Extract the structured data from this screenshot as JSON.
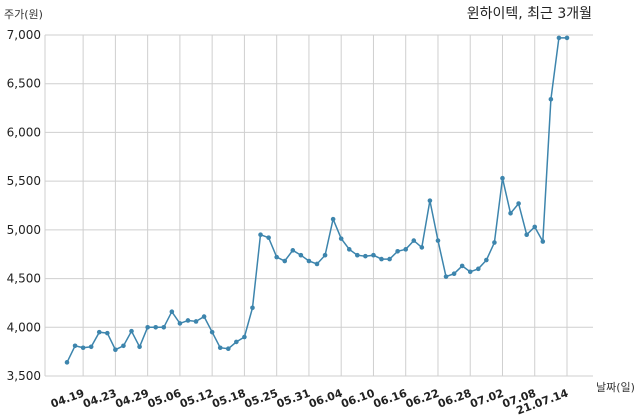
{
  "chart_data": {
    "type": "line",
    "title": "윈하이텍, 최근 3개월",
    "ylabel": "주가(원)",
    "xlabel": "날짜(일)",
    "ylim": [
      3500,
      7000
    ],
    "yticks": [
      3500,
      4000,
      4500,
      5000,
      5500,
      6000,
      6500,
      7000
    ],
    "ytick_labels": [
      "3,500",
      "4,000",
      "4,500",
      "5,000",
      "5,500",
      "6,000",
      "6,500",
      "7,000"
    ],
    "grid": true,
    "line_color": "#3d85ad",
    "x_tick_labels": [
      "04.19",
      "04.23",
      "04.29",
      "05.06",
      "05.12",
      "05.18",
      "05.25",
      "05.31",
      "06.04",
      "06.10",
      "06.16",
      "06.22",
      "06.28",
      "07.02",
      "07.08",
      "21.07.14"
    ],
    "x_tick_positions": [
      2,
      6,
      10,
      14,
      18,
      22,
      26,
      30,
      34,
      38,
      42,
      46,
      50,
      54,
      58,
      62
    ],
    "series": [
      {
        "values": [
          3640,
          3810,
          3790,
          3800,
          3950,
          3940,
          3770,
          3810,
          3960,
          3800,
          4000,
          4000,
          4000,
          4160,
          4040,
          4070,
          4060,
          4110,
          3950,
          3790,
          3780,
          3850,
          3900,
          4200,
          4950,
          4920,
          4720,
          4680,
          4790,
          4740,
          4680,
          4650,
          4740,
          5110,
          4910,
          4800,
          4740,
          4730,
          4740,
          4700,
          4700,
          4780,
          4800,
          4890,
          4820,
          5300,
          4890,
          4520,
          4550,
          4630,
          4570,
          4600,
          4690,
          4870,
          5530,
          5170,
          5270,
          4950,
          5030,
          4880,
          6340,
          6970,
          6970
        ]
      }
    ]
  }
}
